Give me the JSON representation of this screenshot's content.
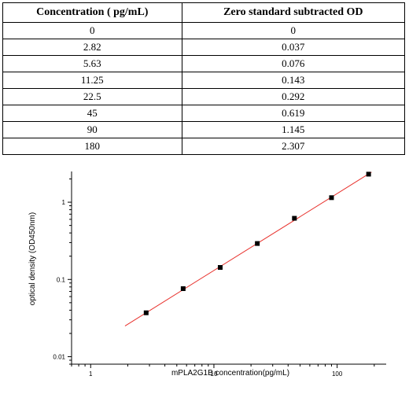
{
  "table": {
    "headers": [
      "Concentration ( pg/mL)",
      "Zero standard subtracted OD"
    ],
    "rows": [
      [
        "0",
        "0"
      ],
      [
        "2.82",
        "0.037"
      ],
      [
        "5.63",
        "0.076"
      ],
      [
        "11.25",
        "0.143"
      ],
      [
        "22.5",
        "0.292"
      ],
      [
        "45",
        "0.619"
      ],
      [
        "90",
        "1.145"
      ],
      [
        "180",
        "2.307"
      ]
    ]
  },
  "chart_data": {
    "type": "scatter",
    "xlabel": "mPLA2G1B concentration(pg/mL)",
    "ylabel": "optical density (OD450nm)",
    "xscale": "log",
    "yscale": "log",
    "xlim": [
      0.7,
      250
    ],
    "ylim": [
      0.008,
      2.5
    ],
    "x_ticks": [
      1,
      10,
      100
    ],
    "x_tick_labels": [
      "1",
      "10",
      "100"
    ],
    "y_ticks": [
      0.01,
      0.1,
      1
    ],
    "y_tick_labels": [
      "0.01",
      "0.1",
      "1"
    ],
    "grid": false,
    "series": [
      {
        "x": [
          2.82,
          5.63,
          11.25,
          22.5,
          45,
          90,
          180
        ],
        "y": [
          0.037,
          0.076,
          0.143,
          0.292,
          0.619,
          1.145,
          2.307
        ]
      }
    ],
    "fit_line": {
      "x": [
        1.9,
        190
      ],
      "y": [
        0.025,
        2.45
      ]
    },
    "colors": {
      "points": "#000000",
      "fit": "#e8322d"
    }
  }
}
